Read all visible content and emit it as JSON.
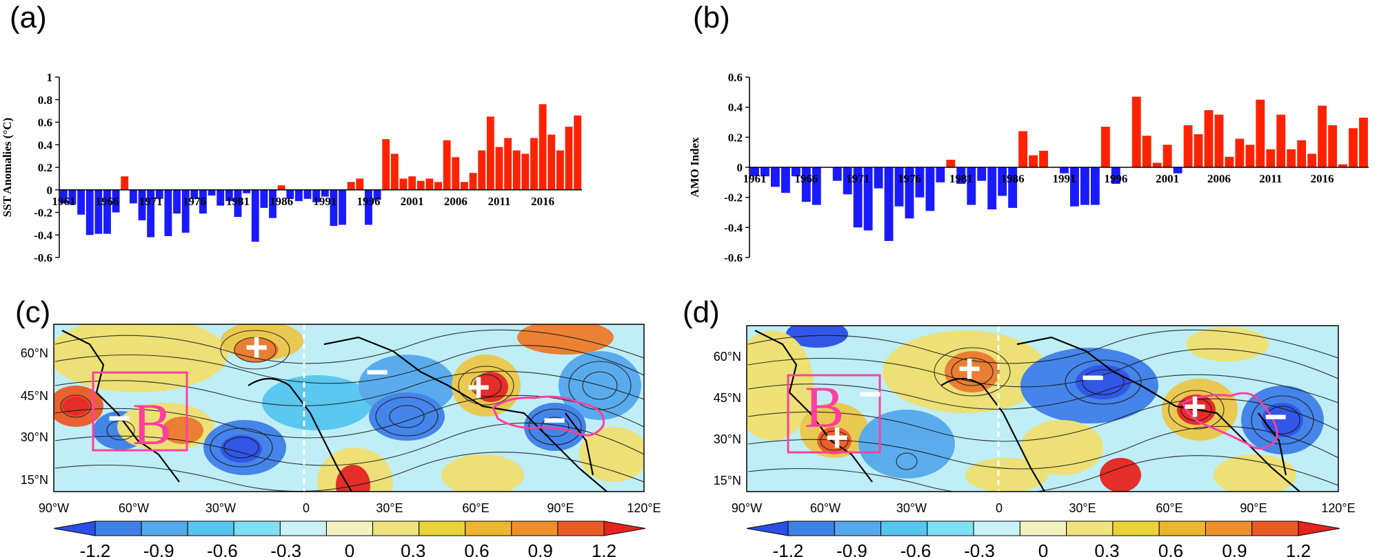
{
  "panels": {
    "a": {
      "tag": "(a)",
      "chart_data": {
        "type": "bar",
        "ylabel": "SST Anomalies (°C)",
        "ylim": [
          -0.6,
          1.0
        ],
        "yticks": [
          -0.6,
          -0.4,
          -0.2,
          0,
          0.2,
          0.4,
          0.6,
          0.8,
          1
        ],
        "ytick_labels": [
          "-0.6",
          "-0.4",
          "-0.2",
          "0",
          "0.2",
          "0.4",
          "0.6",
          "0.8",
          "1"
        ],
        "x_start": 1961,
        "xtick_labels": [
          "1961",
          "1966",
          "1971",
          "1976",
          "1981",
          "1986",
          "1991",
          "1996",
          "2001",
          "2006",
          "2011",
          "2016"
        ],
        "positive_color": "#ff2200",
        "negative_color": "#1a1aff",
        "years": [
          1961,
          1962,
          1963,
          1964,
          1965,
          1966,
          1967,
          1968,
          1969,
          1970,
          1971,
          1972,
          1973,
          1974,
          1975,
          1976,
          1977,
          1978,
          1979,
          1980,
          1981,
          1982,
          1983,
          1984,
          1985,
          1986,
          1987,
          1988,
          1989,
          1990,
          1991,
          1992,
          1993,
          1994,
          1995,
          1996,
          1997,
          1998,
          1999,
          2000,
          2001,
          2002,
          2003,
          2004,
          2005,
          2006,
          2007,
          2008,
          2009,
          2010,
          2011,
          2012,
          2013,
          2014,
          2015,
          2016,
          2017,
          2018,
          2019,
          2020
        ],
        "values": [
          -0.12,
          -0.13,
          -0.22,
          -0.4,
          -0.39,
          -0.39,
          -0.2,
          0.12,
          -0.12,
          -0.27,
          -0.42,
          -0.08,
          -0.41,
          -0.21,
          -0.38,
          -0.08,
          -0.21,
          -0.05,
          -0.14,
          -0.1,
          -0.24,
          -0.03,
          -0.46,
          -0.16,
          -0.25,
          0.04,
          -0.08,
          -0.1,
          -0.08,
          -0.11,
          -0.06,
          -0.32,
          -0.31,
          0.07,
          0.1,
          -0.31,
          -0.09,
          0.45,
          0.32,
          0.1,
          0.12,
          0.08,
          0.1,
          0.07,
          0.44,
          0.29,
          0.07,
          0.15,
          0.35,
          0.65,
          0.38,
          0.46,
          0.35,
          0.32,
          0.46,
          0.76,
          0.49,
          0.35,
          0.56,
          0.66
        ]
      }
    },
    "b": {
      "tag": "(b)",
      "chart_data": {
        "type": "bar",
        "ylabel": "AMO Index",
        "ylim": [
          -0.6,
          0.6
        ],
        "yticks": [
          -0.6,
          -0.4,
          -0.2,
          0,
          0.2,
          0.4,
          0.6
        ],
        "ytick_labels": [
          "-0.6",
          "-0.4",
          "-0.2",
          "0",
          "0.2",
          "0.4",
          "0.6"
        ],
        "x_start": 1961,
        "xtick_labels": [
          "1961",
          "1966",
          "1971",
          "1976",
          "1981",
          "1986",
          "1991",
          "1996",
          "2001",
          "2006",
          "2011",
          "2016"
        ],
        "positive_color": "#ff2200",
        "negative_color": "#1a1aff",
        "years": [
          1961,
          1962,
          1963,
          1964,
          1965,
          1966,
          1967,
          1968,
          1969,
          1970,
          1971,
          1972,
          1973,
          1974,
          1975,
          1976,
          1977,
          1978,
          1979,
          1980,
          1981,
          1982,
          1983,
          1984,
          1985,
          1986,
          1987,
          1988,
          1989,
          1990,
          1991,
          1992,
          1993,
          1994,
          1995,
          1996,
          1997,
          1998,
          1999,
          2000,
          2001,
          2002,
          2003,
          2004,
          2005,
          2006,
          2007,
          2008,
          2009,
          2010,
          2011,
          2012,
          2013,
          2014,
          2015,
          2016,
          2017,
          2018,
          2019,
          2020
        ],
        "values": [
          -0.06,
          -0.06,
          -0.13,
          -0.17,
          -0.06,
          -0.23,
          -0.25,
          0,
          -0.09,
          -0.18,
          -0.4,
          -0.42,
          -0.14,
          -0.49,
          -0.26,
          -0.34,
          -0.2,
          -0.29,
          -0.1,
          0.05,
          -0.11,
          -0.25,
          -0.09,
          -0.28,
          -0.19,
          -0.27,
          0.24,
          0.08,
          0.11,
          0,
          -0.04,
          -0.26,
          -0.25,
          -0.25,
          0.27,
          -0.11,
          0,
          0.47,
          0.21,
          0.03,
          0.15,
          -0.04,
          0.28,
          0.22,
          0.38,
          0.35,
          0.07,
          0.19,
          0.15,
          0.45,
          0.12,
          0.35,
          0.12,
          0.18,
          0.09,
          0.41,
          0.28,
          0.02,
          0.26,
          0.33
        ]
      }
    },
    "c": {
      "tag": "(c)",
      "lat_labels": [
        "60°N",
        "45°N",
        "30°N",
        "15°N"
      ],
      "lon_labels": [
        "90°W",
        "60°W",
        "30°W",
        "0",
        "30°E",
        "60°E",
        "90°E",
        "120°E"
      ],
      "box_label": "B",
      "markers": [
        "+",
        "−",
        "+",
        "−",
        "−"
      ]
    },
    "d": {
      "tag": "(d)",
      "lat_labels": [
        "60°N",
        "45°N",
        "30°N",
        "15°N"
      ],
      "lon_labels": [
        "90°W",
        "60°W",
        "30°W",
        "0",
        "30°E",
        "60°E",
        "90°E",
        "120°E"
      ],
      "box_label": "B",
      "markers": [
        "+",
        "−",
        "+",
        "−",
        "+",
        "−"
      ]
    }
  },
  "colorbar": {
    "labels": [
      "-1.2",
      "-0.9",
      "-0.6",
      "-0.3",
      "0",
      "0.3",
      "0.6",
      "0.9",
      "1.2"
    ],
    "colors": [
      "#2b4fe6",
      "#3f7fe8",
      "#55a8ec",
      "#56c6f0",
      "#7fe0f4",
      "#c9f3f8",
      "#f5f2c2",
      "#efe37e",
      "#e9d339",
      "#edb62c",
      "#ef8f2c",
      "#ec5a26",
      "#e5241f"
    ]
  }
}
